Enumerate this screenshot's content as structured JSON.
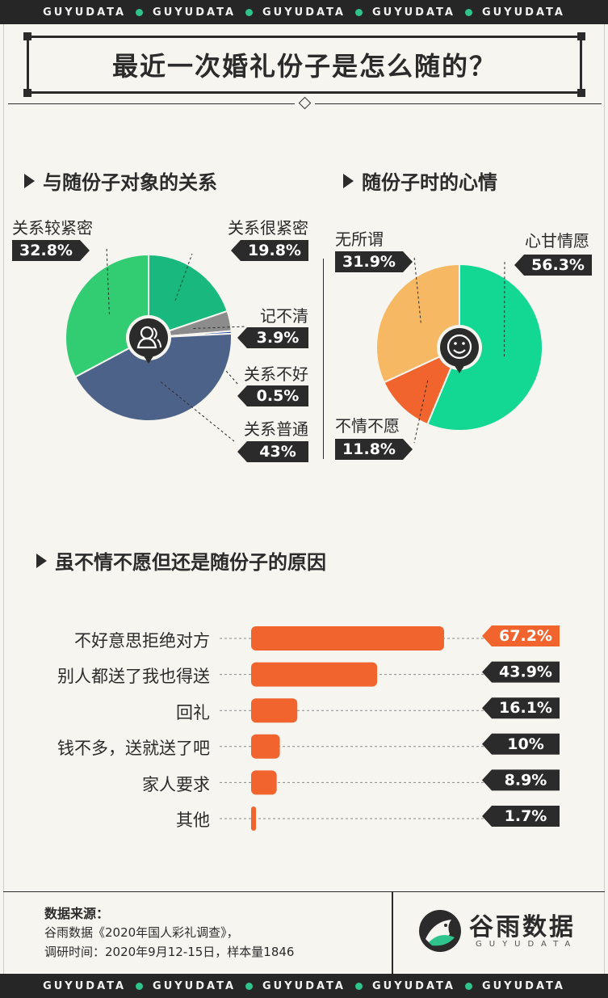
{
  "brand": {
    "band_word": "GUYUDATA",
    "band_color": "#262626",
    "dot_color": "#2fc48b"
  },
  "title": "最近一次婚礼份子是怎么随的？",
  "chart_data": [
    {
      "type": "pie",
      "title": "与随份子对象的关系",
      "center_icon": "person-icon",
      "slices": [
        {
          "label": "关系很紧密",
          "value": 19.8,
          "value_label": "19.8%",
          "color": "#19b87f"
        },
        {
          "label": "记不清",
          "value": 3.9,
          "value_label": "3.9%",
          "color": "#8c8c8c"
        },
        {
          "label": "关系不好",
          "value": 0.5,
          "value_label": "0.5%",
          "color": "#2247a8"
        },
        {
          "label": "关系普通",
          "value": 43,
          "value_label": "43%",
          "color": "#4d6288"
        },
        {
          "label": "关系较紧密",
          "value": 32.8,
          "value_label": "32.8%",
          "color": "#32cc73"
        }
      ]
    },
    {
      "type": "pie",
      "title": "随份子时的心情",
      "center_icon": "smile-icon",
      "slices": [
        {
          "label": "心甘情愿",
          "value": 56.3,
          "value_label": "56.3%",
          "color": "#12d893"
        },
        {
          "label": "不情不愿",
          "value": 11.8,
          "value_label": "11.8%",
          "color": "#f1642e"
        },
        {
          "label": "无所谓",
          "value": 31.9,
          "value_label": "31.9%",
          "color": "#f7b864"
        }
      ]
    },
    {
      "type": "bar",
      "orientation": "horizontal",
      "title": "虽不情不愿但还是随份子的原因",
      "categories": [
        "不好意思拒绝对方",
        "别人都送了我也得送",
        "回礼",
        "钱不多，送就送了吧",
        "家人要求",
        "其他"
      ],
      "values": [
        67.2,
        43.9,
        16.1,
        10,
        8.9,
        1.7
      ],
      "value_labels": [
        "67.2%",
        "43.9%",
        "16.1%",
        "10%",
        "8.9%",
        "1.7%"
      ],
      "bar_color": "#f1642e",
      "highlight_label_color": "#f1642e",
      "label_color": "#2b2b2b"
    }
  ],
  "footer": {
    "source_head": "数据来源：",
    "source_line1": "谷雨数据《2020年国人彩礼调查》，",
    "source_line2": "调研时间：2020年9月12-15日，样本量1846",
    "logo_icon": "bird-logo-icon",
    "logo_name": "谷雨数据",
    "logo_sub": "GUYUDATA"
  }
}
